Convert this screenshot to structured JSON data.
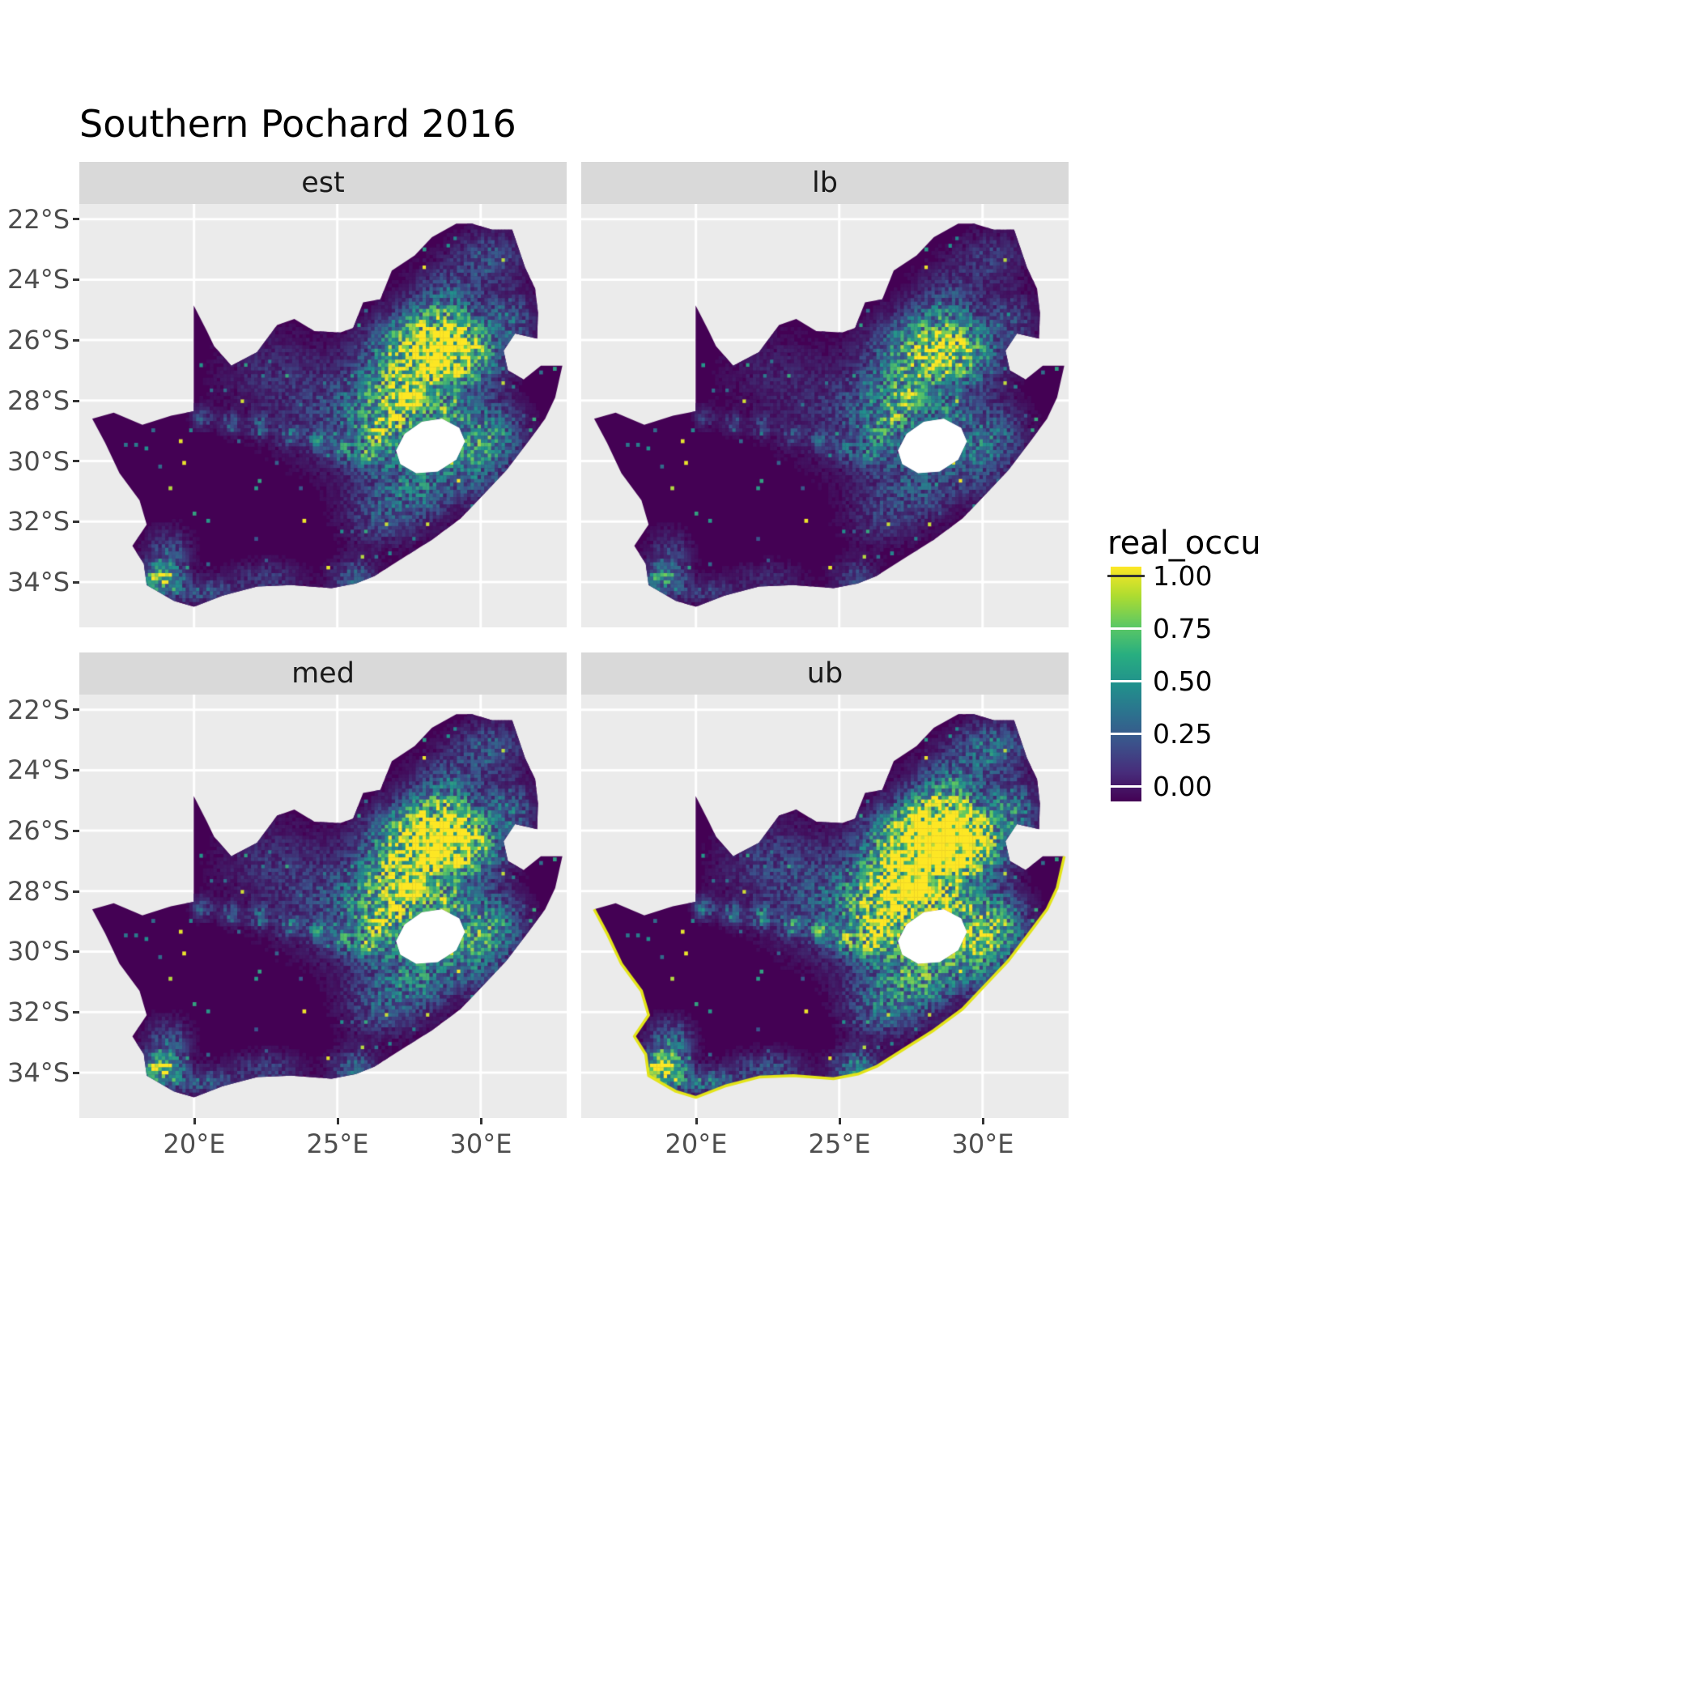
{
  "title": "Southern Pochard 2016",
  "legend": {
    "title": "real_occu",
    "labels": [
      "1.00",
      "0.75",
      "0.50",
      "0.25",
      "0.00"
    ]
  },
  "axes": {
    "x_labels": [
      "20°E",
      "25°E",
      "30°E"
    ],
    "y_labels": [
      "22°S",
      "24°S",
      "26°S",
      "28°S",
      "30°S",
      "32°S",
      "34°S"
    ]
  },
  "colors": {
    "panel_background": "#EBEBEB",
    "strip_background": "#D9D9D9",
    "low": "#440154",
    "high": "#FDE725"
  },
  "chart_data": {
    "type": "heatmap",
    "title": "Southern Pochard 2016",
    "variable": "real_occu",
    "palette": "viridis",
    "limits": [
      0,
      1
    ],
    "legend_breaks": [
      1.0,
      0.75,
      0.5,
      0.25,
      0.0
    ],
    "facets": [
      {
        "label": "est",
        "intensity": 1.0,
        "coast_highlight": false
      },
      {
        "label": "lb",
        "intensity": 0.7,
        "coast_highlight": false
      },
      {
        "label": "med",
        "intensity": 1.1,
        "coast_highlight": false
      },
      {
        "label": "ub",
        "intensity": 1.5,
        "coast_highlight": true
      }
    ],
    "x_domain": [
      16,
      33
    ],
    "y_domain": [
      21.5,
      35.5
    ],
    "x_ticks": [
      20,
      25,
      30
    ],
    "y_ticks": [
      22,
      24,
      26,
      28,
      30,
      32,
      34
    ],
    "viridis": [
      "#440154",
      "#3B528B",
      "#21918C",
      "#5EC962",
      "#FDE725"
    ],
    "outline": [
      [
        16.45,
        28.6
      ],
      [
        17.2,
        28.4
      ],
      [
        18.2,
        28.8
      ],
      [
        19.2,
        28.5
      ],
      [
        19.99,
        28.35
      ],
      [
        19.99,
        24.85
      ],
      [
        20.45,
        25.7
      ],
      [
        20.7,
        26.2
      ],
      [
        21.3,
        26.85
      ],
      [
        22.2,
        26.4
      ],
      [
        22.9,
        25.5
      ],
      [
        23.5,
        25.3
      ],
      [
        24.2,
        25.7
      ],
      [
        25.1,
        25.75
      ],
      [
        25.55,
        25.6
      ],
      [
        25.9,
        24.75
      ],
      [
        26.5,
        24.65
      ],
      [
        26.9,
        23.7
      ],
      [
        27.7,
        23.2
      ],
      [
        28.3,
        22.6
      ],
      [
        29.15,
        22.15
      ],
      [
        29.7,
        22.15
      ],
      [
        30.4,
        22.35
      ],
      [
        31.1,
        22.35
      ],
      [
        31.55,
        23.6
      ],
      [
        31.9,
        24.3
      ],
      [
        32.0,
        25.1
      ],
      [
        31.97,
        25.95
      ],
      [
        31.2,
        25.78
      ],
      [
        30.8,
        26.35
      ],
      [
        30.95,
        27.0
      ],
      [
        31.5,
        27.3
      ],
      [
        32.1,
        26.85
      ],
      [
        32.85,
        26.85
      ],
      [
        32.6,
        27.9
      ],
      [
        32.25,
        28.6
      ],
      [
        31.7,
        29.3
      ],
      [
        30.9,
        30.3
      ],
      [
        30.1,
        31.1
      ],
      [
        29.3,
        31.9
      ],
      [
        28.3,
        32.6
      ],
      [
        27.3,
        33.2
      ],
      [
        26.3,
        33.8
      ],
      [
        25.65,
        34.05
      ],
      [
        24.8,
        34.2
      ],
      [
        23.4,
        34.1
      ],
      [
        22.2,
        34.15
      ],
      [
        21.0,
        34.45
      ],
      [
        20.0,
        34.82
      ],
      [
        19.3,
        34.62
      ],
      [
        18.8,
        34.35
      ],
      [
        18.35,
        34.1
      ],
      [
        18.25,
        33.4
      ],
      [
        17.85,
        32.8
      ],
      [
        18.35,
        32.1
      ],
      [
        18.1,
        31.3
      ],
      [
        17.4,
        30.4
      ],
      [
        16.9,
        29.4
      ]
    ],
    "hole": [
      [
        27.05,
        29.65
      ],
      [
        27.35,
        29.1
      ],
      [
        27.95,
        28.7
      ],
      [
        28.65,
        28.6
      ],
      [
        29.25,
        28.9
      ],
      [
        29.45,
        29.35
      ],
      [
        29.15,
        29.95
      ],
      [
        28.5,
        30.35
      ],
      [
        27.75,
        30.4
      ],
      [
        27.2,
        30.1
      ]
    ],
    "coast": [
      [
        32.85,
        26.85
      ],
      [
        32.6,
        27.9
      ],
      [
        32.25,
        28.6
      ],
      [
        31.7,
        29.3
      ],
      [
        30.9,
        30.3
      ],
      [
        30.1,
        31.1
      ],
      [
        29.3,
        31.9
      ],
      [
        28.3,
        32.6
      ],
      [
        27.3,
        33.2
      ],
      [
        26.3,
        33.8
      ],
      [
        25.65,
        34.05
      ],
      [
        24.8,
        34.2
      ],
      [
        23.4,
        34.1
      ],
      [
        22.2,
        34.15
      ],
      [
        21.0,
        34.45
      ],
      [
        20.0,
        34.82
      ],
      [
        19.3,
        34.62
      ],
      [
        18.8,
        34.35
      ],
      [
        18.35,
        34.1
      ],
      [
        18.25,
        33.4
      ],
      [
        17.85,
        32.8
      ],
      [
        18.35,
        32.1
      ],
      [
        18.1,
        31.3
      ],
      [
        17.4,
        30.4
      ],
      [
        16.9,
        29.4
      ],
      [
        16.45,
        28.6
      ]
    ],
    "hotspots": [
      [
        28.2,
        26.2,
        1.1,
        0.75,
        1.05
      ],
      [
        29.3,
        26.6,
        0.9,
        0.7,
        0.7
      ],
      [
        27.3,
        27.6,
        1.0,
        0.9,
        0.55
      ],
      [
        26.7,
        29.0,
        1.1,
        1.1,
        0.45
      ],
      [
        29.6,
        29.8,
        0.9,
        0.9,
        0.5
      ],
      [
        30.5,
        29.0,
        0.7,
        0.7,
        0.35
      ],
      [
        28.9,
        28.4,
        0.5,
        0.4,
        0.4
      ],
      [
        18.85,
        33.9,
        0.45,
        0.35,
        0.9
      ],
      [
        19.1,
        33.0,
        0.5,
        0.5,
        0.3
      ],
      [
        25.55,
        33.85,
        0.5,
        0.4,
        0.35
      ],
      [
        28.8,
        24.8,
        0.8,
        0.8,
        0.35
      ],
      [
        30.3,
        23.3,
        0.8,
        0.6,
        0.3
      ],
      [
        31.0,
        25.3,
        0.6,
        0.6,
        0.35
      ],
      [
        24.8,
        28.3,
        1.6,
        1.2,
        0.18
      ],
      [
        22.5,
        27.0,
        1.2,
        0.9,
        0.12
      ],
      [
        27.8,
        30.9,
        0.8,
        0.7,
        0.35
      ],
      [
        26.5,
        31.8,
        0.9,
        0.7,
        0.25
      ],
      [
        20.2,
        34.3,
        0.8,
        0.3,
        0.3
      ],
      [
        22.5,
        33.9,
        0.9,
        0.4,
        0.2
      ],
      [
        20.3,
        28.55,
        0.25,
        0.25,
        0.3
      ],
      [
        21.3,
        28.75,
        0.25,
        0.25,
        0.3
      ],
      [
        22.3,
        28.85,
        0.25,
        0.25,
        0.3
      ],
      [
        23.3,
        29.15,
        0.25,
        0.25,
        0.3
      ],
      [
        24.3,
        29.35,
        0.25,
        0.25,
        0.3
      ],
      [
        25.2,
        29.65,
        0.25,
        0.25,
        0.3
      ],
      [
        26.0,
        29.85,
        0.25,
        0.25,
        0.3
      ],
      [
        26.4,
        29.2,
        0.3,
        0.3,
        0.3
      ],
      [
        26.9,
        28.5,
        0.3,
        0.3,
        0.3
      ],
      [
        27.4,
        27.9,
        0.3,
        0.3,
        0.32
      ]
    ]
  }
}
